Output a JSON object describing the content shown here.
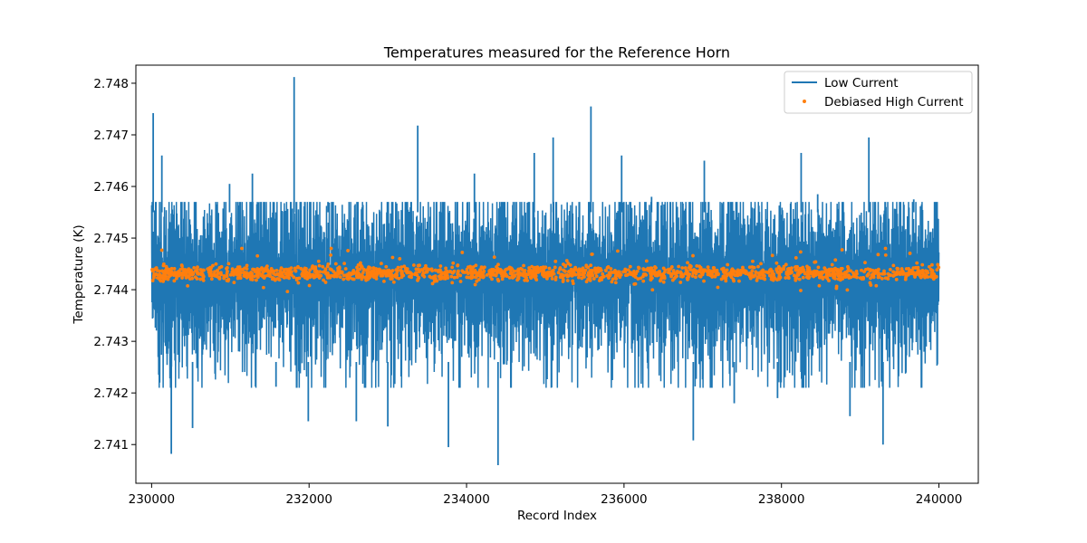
{
  "chart_data": {
    "type": "line",
    "title": "Temperatures measured for the Reference Horn",
    "xlabel": "Record Index",
    "ylabel": "Temperature (K)",
    "xlim": [
      229800,
      240500
    ],
    "ylim": [
      2.74025,
      2.74835
    ],
    "grid": false,
    "legend_position": "top-right",
    "x_ticks": [
      230000,
      232000,
      234000,
      236000,
      238000,
      240000
    ],
    "x_tick_labels": [
      "230000",
      "232000",
      "234000",
      "236000",
      "238000",
      "240000"
    ],
    "y_ticks": [
      2.741,
      2.742,
      2.743,
      2.744,
      2.745,
      2.746,
      2.747,
      2.748
    ],
    "y_tick_labels": [
      "2.741",
      "2.742",
      "2.743",
      "2.744",
      "2.745",
      "2.746",
      "2.747",
      "2.748"
    ],
    "series": [
      {
        "name": "Low Current",
        "kind": "line",
        "color": "#1f77b4",
        "x_start": 230000,
        "x_end": 240000,
        "n_points": 10000,
        "typical_range": [
          2.7424,
          2.7457
        ],
        "band_center": 2.74425,
        "spikes": [
          {
            "x": 230020,
            "y": 2.74742
          },
          {
            "x": 230130,
            "y": 2.7466
          },
          {
            "x": 230250,
            "y": 2.74082
          },
          {
            "x": 230520,
            "y": 2.74132
          },
          {
            "x": 230990,
            "y": 2.74605
          },
          {
            "x": 231280,
            "y": 2.74625
          },
          {
            "x": 231580,
            "y": 2.74212
          },
          {
            "x": 231810,
            "y": 2.74812
          },
          {
            "x": 231990,
            "y": 2.74145
          },
          {
            "x": 232240,
            "y": 2.7457
          },
          {
            "x": 232600,
            "y": 2.74145
          },
          {
            "x": 233000,
            "y": 2.74135
          },
          {
            "x": 233380,
            "y": 2.74718
          },
          {
            "x": 233770,
            "y": 2.74095
          },
          {
            "x": 234100,
            "y": 2.74625
          },
          {
            "x": 234400,
            "y": 2.7406
          },
          {
            "x": 234860,
            "y": 2.74665
          },
          {
            "x": 235100,
            "y": 2.74695
          },
          {
            "x": 235580,
            "y": 2.74755
          },
          {
            "x": 235970,
            "y": 2.7466
          },
          {
            "x": 236350,
            "y": 2.7458
          },
          {
            "x": 236880,
            "y": 2.74108
          },
          {
            "x": 237020,
            "y": 2.7465
          },
          {
            "x": 237400,
            "y": 2.7418
          },
          {
            "x": 237950,
            "y": 2.7419
          },
          {
            "x": 238250,
            "y": 2.74665
          },
          {
            "x": 238460,
            "y": 2.74585
          },
          {
            "x": 238870,
            "y": 2.74155
          },
          {
            "x": 239110,
            "y": 2.74695
          },
          {
            "x": 239290,
            "y": 2.741
          },
          {
            "x": 239680,
            "y": 2.74575
          }
        ]
      },
      {
        "name": "Debiased High Current",
        "kind": "scatter",
        "color": "#ff7f0e",
        "x_start": 230000,
        "x_end": 240000,
        "n_points": 10000,
        "center": 2.74432,
        "typical_range": [
          2.7441,
          2.7446
        ]
      }
    ]
  }
}
